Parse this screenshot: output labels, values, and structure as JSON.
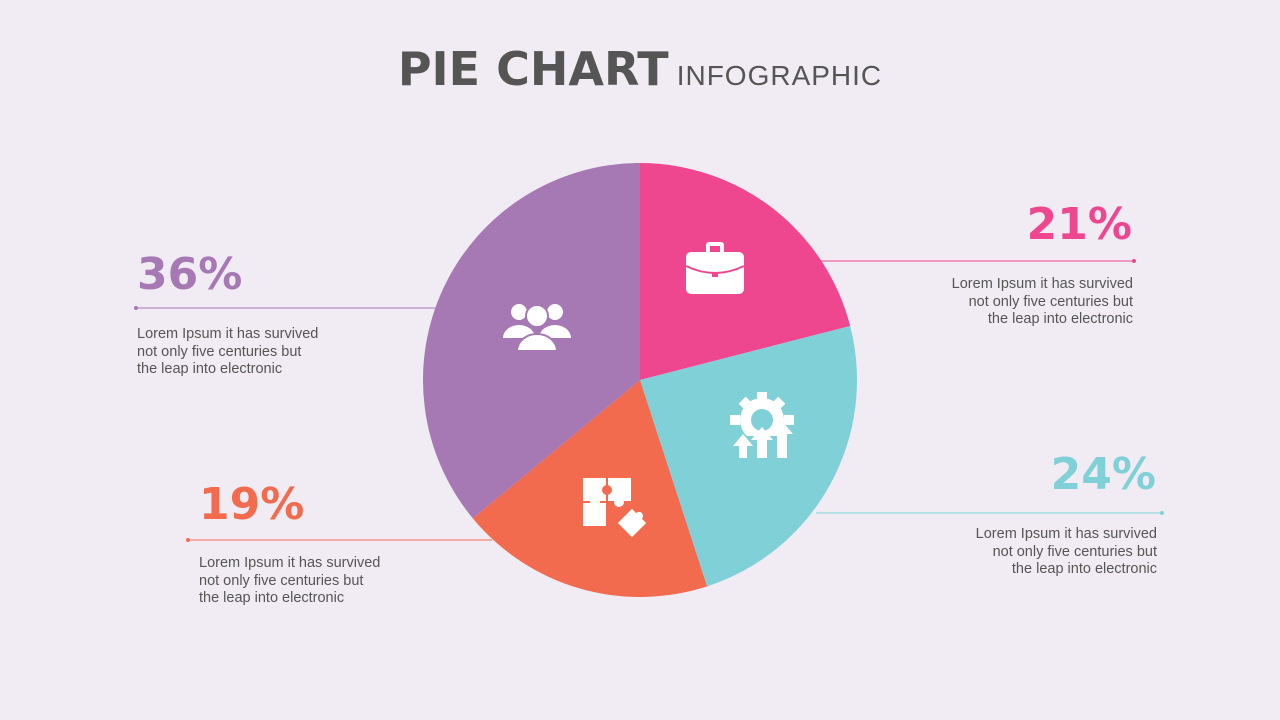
{
  "header": {
    "title": "PIE CHART",
    "subtitle": "INFOGRAPHIC"
  },
  "chart_data": {
    "type": "pie",
    "slices": [
      {
        "label": "21%",
        "value": 21,
        "color": "#ee4790",
        "icon": "briefcase-icon",
        "description": "Lorem Ipsum it has survived not only five centuries but the leap into electronic"
      },
      {
        "label": "24%",
        "value": 24,
        "color": "#80d0d8",
        "icon": "gear-growth-icon",
        "description": "Lorem Ipsum it has survived not only five centuries but the leap into electronic"
      },
      {
        "label": "19%",
        "value": 19,
        "color": "#f26b4e",
        "icon": "puzzle-icon",
        "description": "Lorem Ipsum it has survived not only five centuries but the leap into electronic"
      },
      {
        "label": "36%",
        "value": 36,
        "color": "#a678b4",
        "icon": "team-icon",
        "description": "Lorem Ipsum it has survived not only five centuries but the leap into electronic"
      }
    ],
    "start": "top",
    "direction": "clockwise"
  },
  "desc_lines": {
    "line1": "Lorem Ipsum it has survived",
    "line2": "not only five centuries but",
    "line3": "the leap into electronic"
  }
}
